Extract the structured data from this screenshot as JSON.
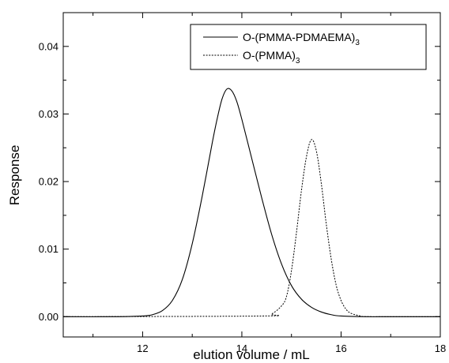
{
  "chart_data": {
    "type": "line",
    "xlabel": "elution volume / mL",
    "ylabel": "Response",
    "xlim": [
      10.4,
      18
    ],
    "ylim": [
      -0.003,
      0.045
    ],
    "xticks": [
      12,
      14,
      16,
      18
    ],
    "xtick_labels": [
      "12",
      "14",
      "16",
      "18"
    ],
    "yticks": [
      0.0,
      0.01,
      0.02,
      0.03,
      0.04
    ],
    "ytick_labels": [
      "0.00",
      "0.01",
      "0.02",
      "0.03",
      "0.04"
    ],
    "grid": false,
    "legend_position": "top-right",
    "series": [
      {
        "name": "O-(PMMA-PDMAEMA)3",
        "legend_main": "O-(PMMA-PDMAEMA)",
        "legend_sub": "3",
        "line_style": "solid",
        "color": "#000000",
        "x": [
          10.4,
          11.5,
          12.0,
          12.2,
          12.4,
          12.6,
          12.8,
          13.0,
          13.2,
          13.4,
          13.5,
          13.6,
          13.7,
          13.8,
          13.9,
          14.0,
          14.2,
          14.4,
          14.6,
          14.8,
          15.0,
          15.2,
          15.4,
          15.6,
          15.8,
          16.0,
          16.5,
          17.0,
          18.0
        ],
        "y": [
          0.0,
          0.0,
          0.0001,
          0.0003,
          0.0009,
          0.0024,
          0.0055,
          0.0108,
          0.0178,
          0.0256,
          0.0292,
          0.0322,
          0.0337,
          0.0334,
          0.0318,
          0.0292,
          0.0234,
          0.0176,
          0.0122,
          0.0078,
          0.0046,
          0.0026,
          0.0014,
          0.0007,
          0.0003,
          0.0001,
          0.0,
          0.0,
          0.0
        ]
      },
      {
        "name": "O-(PMMA)3",
        "legend_main": "O-(PMMA)",
        "legend_sub": "3",
        "line_style": "dashed",
        "color": "#000000",
        "x": [
          10.4,
          14.4,
          14.6,
          14.8,
          14.9,
          15.0,
          15.1,
          15.2,
          15.3,
          15.4,
          15.5,
          15.6,
          15.7,
          15.8,
          15.9,
          16.0,
          16.1,
          16.2,
          16.4,
          16.6,
          18.0
        ],
        "y": [
          0.0,
          0.0001,
          0.0004,
          0.0016,
          0.003,
          0.0068,
          0.0124,
          0.0186,
          0.0236,
          0.0262,
          0.0246,
          0.0198,
          0.0138,
          0.0086,
          0.0047,
          0.0024,
          0.0011,
          0.0005,
          0.0001,
          0.0,
          0.0
        ]
      }
    ]
  }
}
